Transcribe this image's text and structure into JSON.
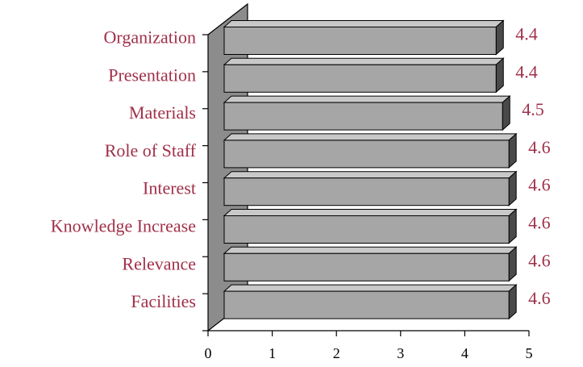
{
  "chart_data": {
    "type": "bar",
    "orientation": "horizontal",
    "style": "3d",
    "categories": [
      "Organization",
      "Presentation",
      "Materials",
      "Role of Staff",
      "Interest",
      "Knowledge Increase",
      "Relevance",
      "Facilities"
    ],
    "values": [
      4.4,
      4.4,
      4.5,
      4.6,
      4.6,
      4.6,
      4.6,
      4.6
    ],
    "value_labels": [
      "4.4",
      "4.4",
      "4.5",
      "4.6",
      "4.6",
      "4.6",
      "4.6",
      "4.6"
    ],
    "xlim": [
      0,
      5
    ],
    "x_ticks": [
      "0",
      "1",
      "2",
      "3",
      "4",
      "5"
    ],
    "grid": false,
    "legend": "none",
    "title": "",
    "xlabel": "",
    "ylabel": ""
  },
  "colors": {
    "label_text": "#a0304a",
    "bar_front": "#a6a6a6",
    "bar_top": "#c8c8c8",
    "bar_side": "#4a4a4a",
    "wall": "#8c8c8c",
    "axis": "#000000"
  }
}
